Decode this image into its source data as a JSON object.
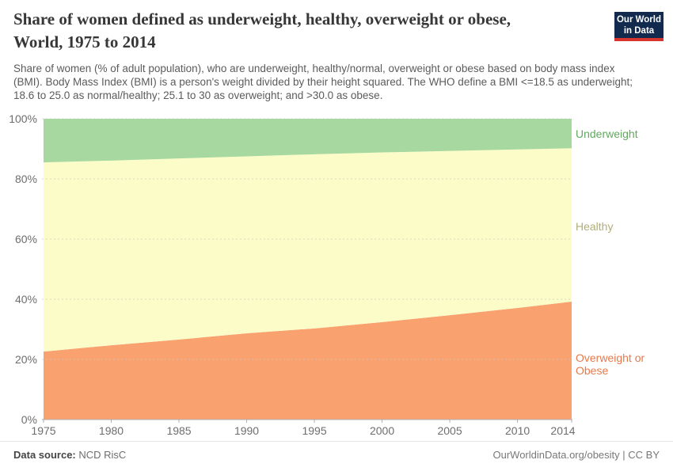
{
  "header": {
    "title_line1": "Share of women defined as underweight, healthy, overweight or obese,",
    "title_line2": "World, 1975 to 2014",
    "subtitle": "Share of women (% of adult population), who are underweight, healthy/normal, overweight or obese based on body mass index (BMI). Body Mass Index (BMI) is a person's weight divided by their height squared. The WHO define a BMI <=18.5 as underweight; 18.6 to 25.0 as normal/healthy; 25.1 to 30 as overweight; and >30.0 as obese.",
    "logo_line1": "Our World",
    "logo_line2": "in Data",
    "logo_bg_color": "#112a4e",
    "logo_bar_color": "#d5342f"
  },
  "chart_data": {
    "type": "area",
    "stacked": true,
    "title": "Share of women defined as underweight, healthy, overweight or obese, World, 1975 to 2014",
    "x": [
      1975,
      1980,
      1985,
      1990,
      1995,
      2000,
      2005,
      2010,
      2014
    ],
    "x_tick_labels": [
      "1975",
      "1980",
      "1985",
      "1990",
      "1995",
      "2000",
      "2005",
      "2010",
      "2014"
    ],
    "series": [
      {
        "name": "Overweight or Obese",
        "color": "#f9a26f",
        "label_color": "#e8794a",
        "values": [
          22.6,
          24.7,
          26.6,
          28.7,
          30.3,
          32.4,
          34.7,
          37.1,
          39.2
        ]
      },
      {
        "name": "Healthy",
        "color": "#fcfcc9",
        "label_color": "#b2ae77",
        "values": [
          62.9,
          61.4,
          60.2,
          58.8,
          57.9,
          56.4,
          54.6,
          52.7,
          51.0
        ]
      },
      {
        "name": "Underweight",
        "color": "#a7d8a0",
        "label_color": "#62a85e",
        "values": [
          14.5,
          13.9,
          13.2,
          12.5,
          11.8,
          11.2,
          10.7,
          10.2,
          9.8
        ]
      }
    ],
    "ylim": [
      0,
      100
    ],
    "y_ticks": [
      "0%",
      "20%",
      "40%",
      "60%",
      "80%",
      "100%"
    ],
    "grid": "dashed-horizontal",
    "legend_position": "right-edge-labels"
  },
  "footer": {
    "source_label": "Data source:",
    "source_value": "NCD RisC",
    "right_text": "OurWorldinData.org/obesity | CC BY"
  }
}
